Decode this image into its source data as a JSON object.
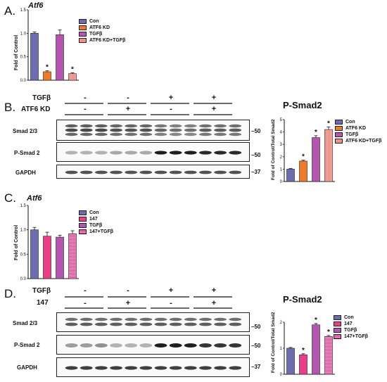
{
  "colors": {
    "con": "#6c6cae",
    "atf6kd": "#f07a2a",
    "tgfb": "#b456b0",
    "atf6kd_tgfb": "#f08075",
    "c147": "#ec3e86",
    "c147_tgfb": "#e04594"
  },
  "panel_a": {
    "label": "A.",
    "gene": "Atf6",
    "ylabel": "Fold of Control",
    "legend": [
      "Con",
      "ATF6 KD",
      "TGFβ",
      "ATF6 KD+TGFβ"
    ]
  },
  "panel_b": {
    "label": "B.",
    "row1_label": "TGFβ",
    "row2_label": "ATF6 KD",
    "row1_signs": [
      "-",
      "-",
      "+",
      "+"
    ],
    "row2_signs": [
      "-",
      "+",
      "-",
      "+"
    ],
    "blot_labels": [
      "Smad 2/3",
      "P-Smad 2",
      "GAPDH"
    ],
    "mw": [
      "50",
      "50",
      "37"
    ],
    "chart_title": "P-Smad2",
    "ylabel": "Fold of Control/Total Smad2",
    "legend": [
      "Con",
      "ATF6 KD",
      "TGFβ",
      "ATF6 KD+TGFβ"
    ]
  },
  "panel_c": {
    "label": "C.",
    "gene": "Atf6",
    "ylabel": "Fold of Control",
    "legend": [
      "Con",
      "147",
      "TGFβ",
      "147+TGFβ"
    ]
  },
  "panel_d": {
    "label": "D.",
    "row1_label": "TGFβ",
    "row2_label": "147",
    "row1_signs": [
      "-",
      "-",
      "+",
      "+"
    ],
    "row2_signs": [
      "-",
      "+",
      "-",
      "+"
    ],
    "blot_labels": [
      "Smad 2/3",
      "P-Smad 2",
      "GAPDH"
    ],
    "mw": [
      "50",
      "50",
      "37"
    ],
    "chart_title": "P-Smad2",
    "ylabel": "Fold of Control/Total Smad2",
    "legend": [
      "Con",
      "147",
      "TGFβ",
      "147+TGFβ"
    ]
  },
  "chart_data": [
    {
      "type": "bar",
      "categories": [
        "Con",
        "ATF6 KD",
        "TGFβ",
        "ATF6 KD+TGFβ"
      ],
      "values": [
        1.0,
        0.18,
        0.97,
        0.14
      ],
      "errors": [
        0.03,
        0.02,
        0.1,
        0.02
      ],
      "significant": [
        false,
        true,
        false,
        true
      ],
      "ylabel": "Fold of Control",
      "ylim": [
        0,
        1.5
      ],
      "yticks": [
        0.0,
        0.5,
        1.0,
        1.5
      ],
      "yticklabels": [
        "0.0",
        "0.5",
        "1.0",
        "1.5"
      ]
    },
    {
      "type": "bar",
      "categories": [
        "Con",
        "ATF6 KD",
        "TGFβ",
        "ATF6 KD+TGFβ"
      ],
      "values": [
        1.0,
        1.65,
        3.55,
        4.2
      ],
      "errors": [
        0.05,
        0.07,
        0.15,
        0.2
      ],
      "significant": [
        false,
        true,
        true,
        true
      ],
      "title": "P-Smad2",
      "ylabel": "Fold of Control/Total Smad2",
      "ylim": [
        0,
        5
      ],
      "yticks": [
        0,
        1,
        2,
        3,
        4,
        5
      ],
      "yticklabels": [
        "0",
        "1",
        "2",
        "3",
        "4",
        "5"
      ]
    },
    {
      "type": "bar",
      "categories": [
        "Con",
        "147",
        "TGFβ",
        "147+TGFβ"
      ],
      "values": [
        1.0,
        0.87,
        0.85,
        0.92
      ],
      "errors": [
        0.05,
        0.08,
        0.04,
        0.06
      ],
      "significant": [
        false,
        false,
        false,
        false
      ],
      "ylabel": "Fold of Control",
      "ylim": [
        0,
        1.5
      ],
      "yticks": [
        0.0,
        0.5,
        1.0,
        1.5
      ],
      "yticklabels": [
        "0.0",
        "0.5",
        "1.0",
        "1.5"
      ]
    },
    {
      "type": "bar",
      "categories": [
        "Con",
        "147",
        "TGFβ",
        "147+TGFβ"
      ],
      "values": [
        1.0,
        0.75,
        1.9,
        1.45
      ],
      "errors": [
        0.03,
        0.04,
        0.05,
        0.04
      ],
      "significant": [
        false,
        true,
        true,
        true
      ],
      "title": "P-Smad2",
      "ylabel": "Fold of Control/Total Smad2",
      "ylim": [
        0,
        2
      ],
      "yticks": [
        0,
        1,
        2
      ],
      "yticklabels": [
        "0",
        "1",
        "2"
      ]
    }
  ]
}
